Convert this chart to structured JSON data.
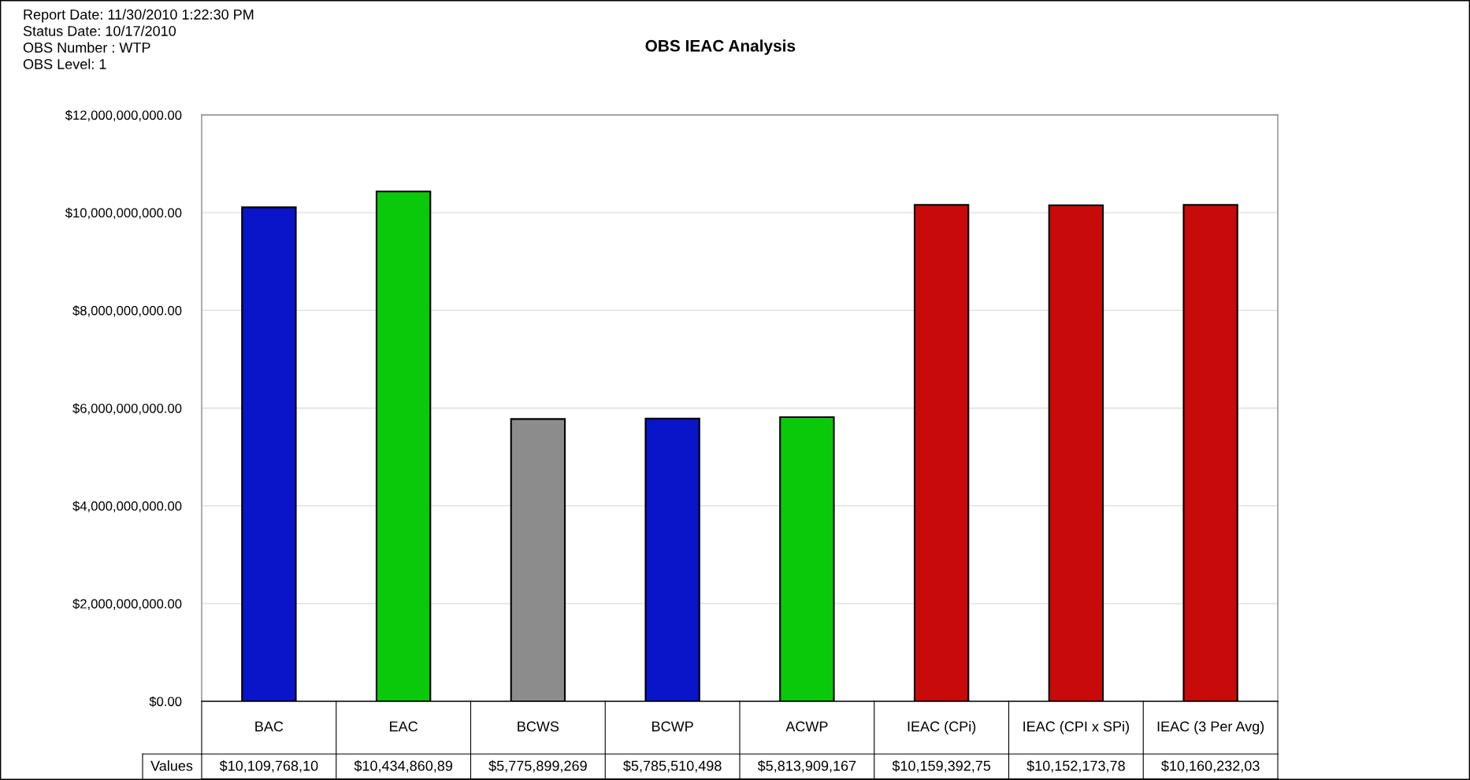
{
  "chart_data": {
    "type": "bar",
    "title": "OBS IEAC Analysis",
    "annotations": [
      "Report Date: 11/30/2010 1:22:30 PM",
      "Status Date: 10/17/2010",
      "OBS Number : WTP",
      "OBS Level: 1",
      "Values"
    ],
    "categories": [
      "BAC",
      "EAC",
      "BCWS",
      "BCWP",
      "ACWP",
      "IEAC (CPi)",
      "IEAC (CPI x SPi)",
      "IEAC (3 Per Avg)"
    ],
    "values": [
      10109768100,
      10434860890,
      5775899269,
      5785510498,
      5813909167,
      10159392750,
      10152173780,
      10160232030
    ],
    "value_labels": [
      "$10,109,768,10",
      "$10,434,860,89",
      "$5,775,899,269",
      "$5,785,510,498",
      "$5,813,909,167",
      "$10,159,392,75",
      "$10,152,173,78",
      "$10,160,232,03"
    ],
    "colors": [
      "#0a14c8",
      "#0ac80a",
      "#8c8c8c",
      "#0a14c8",
      "#0ac80a",
      "#c80a0a",
      "#c80a0a",
      "#c80a0a"
    ],
    "ylim": [
      0,
      12000000000
    ],
    "yticks": [
      {
        "value": 0,
        "label": "$0.00"
      },
      {
        "value": 2000000000,
        "label": "$2,000,000,000.00"
      },
      {
        "value": 4000000000,
        "label": "$4,000,000,000.00"
      },
      {
        "value": 6000000000,
        "label": "$6,000,000,000.00"
      },
      {
        "value": 8000000000,
        "label": "$8,000,000,000.00"
      },
      {
        "value": 10000000000,
        "label": "$10,000,000,000.00"
      },
      {
        "value": 12000000000,
        "label": "$12,000,000,000.00"
      }
    ],
    "grid": "y"
  }
}
